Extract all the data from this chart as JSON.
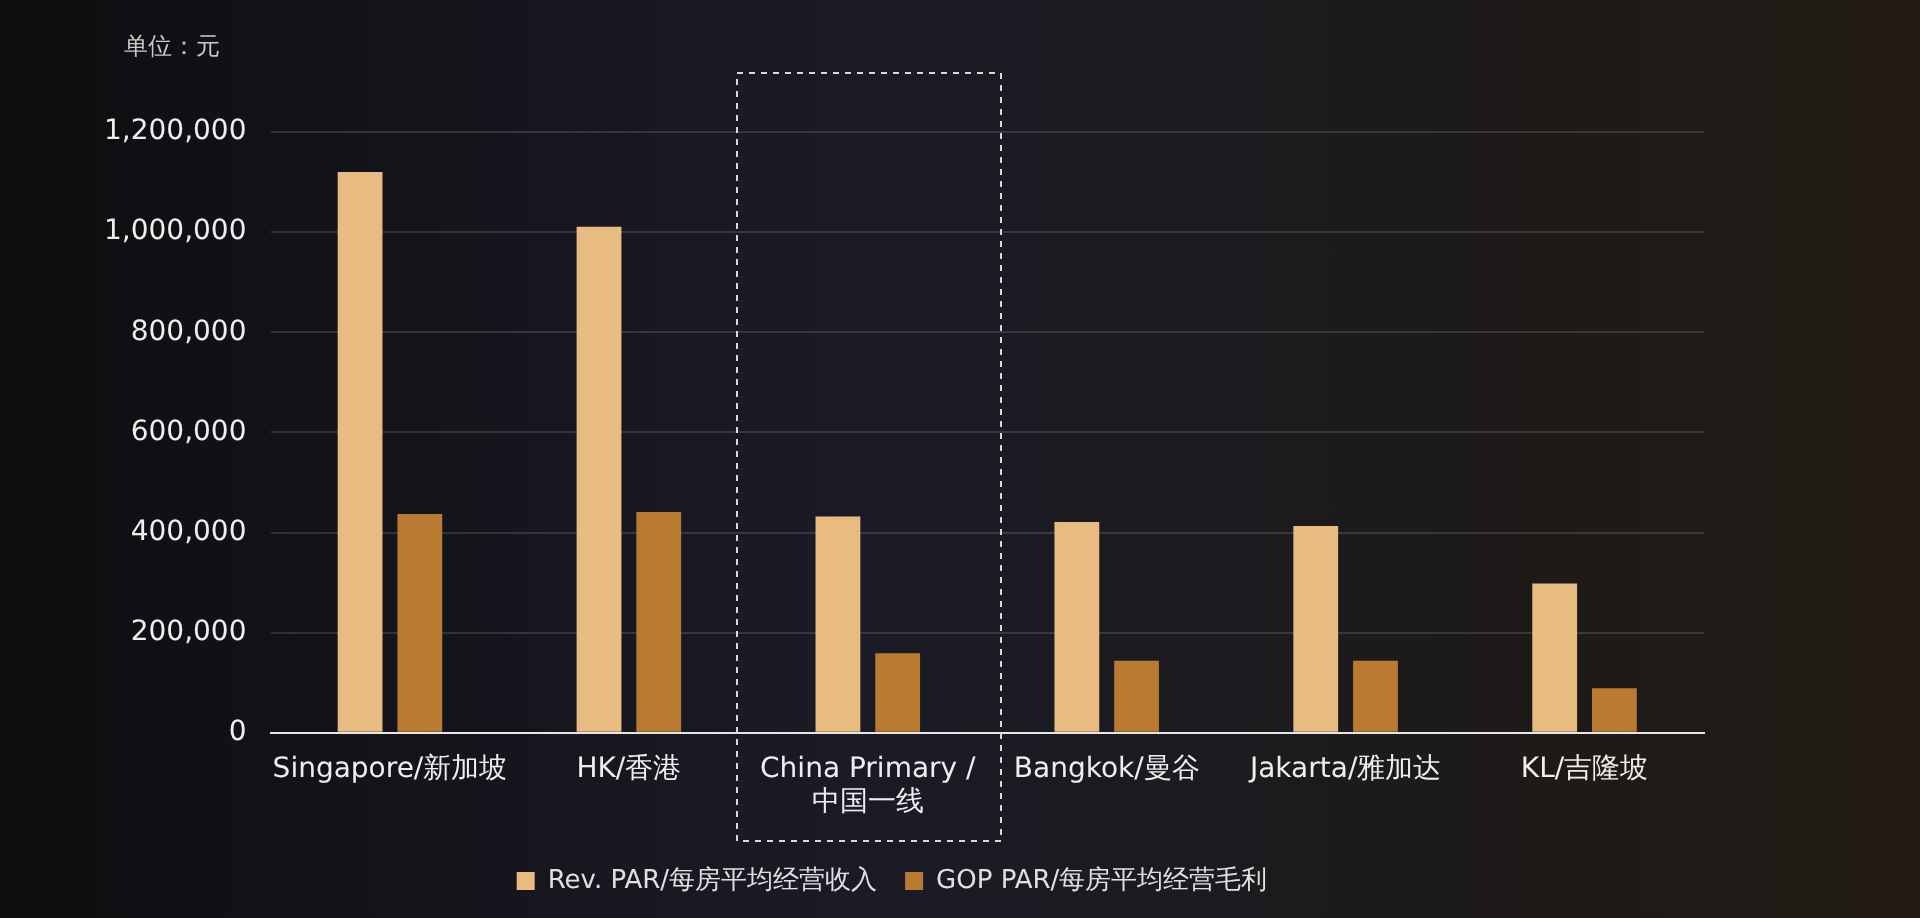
{
  "chart_data": {
    "type": "bar",
    "ylabel": "单位：元",
    "categories": [
      "Singapore/新加坡",
      "HK/香港",
      "China Primary / 中国一线",
      "Bangkok/曼谷",
      "Jakarta/雅加达",
      "KL/吉隆坡"
    ],
    "series": [
      {
        "name": "Rev. PAR/每房平均经营收入",
        "color": "#e8bc80",
        "values": [
          1120000,
          1011000,
          432000,
          421000,
          413000,
          298000
        ]
      },
      {
        "name": "GOP PAR/每房平均经营毛利",
        "color": "#b97a32",
        "values": [
          437000,
          441000,
          159000,
          144000,
          144000,
          89000
        ]
      }
    ],
    "ylim": [
      0,
      1200000
    ],
    "yticks": [
      0,
      {
        "value": 200000,
        "label": "200,000"
      },
      {
        "value": 400000,
        "label": "400,000"
      },
      {
        "value": 600000,
        "label": "600,000"
      },
      {
        "value": 800000,
        "label": "800,000"
      },
      {
        "value": 1000000,
        "label": "1,000,000"
      },
      {
        "value": 1200000,
        "label": "1,200,000"
      }
    ],
    "grid": "y",
    "legend": "bottom"
  }
}
